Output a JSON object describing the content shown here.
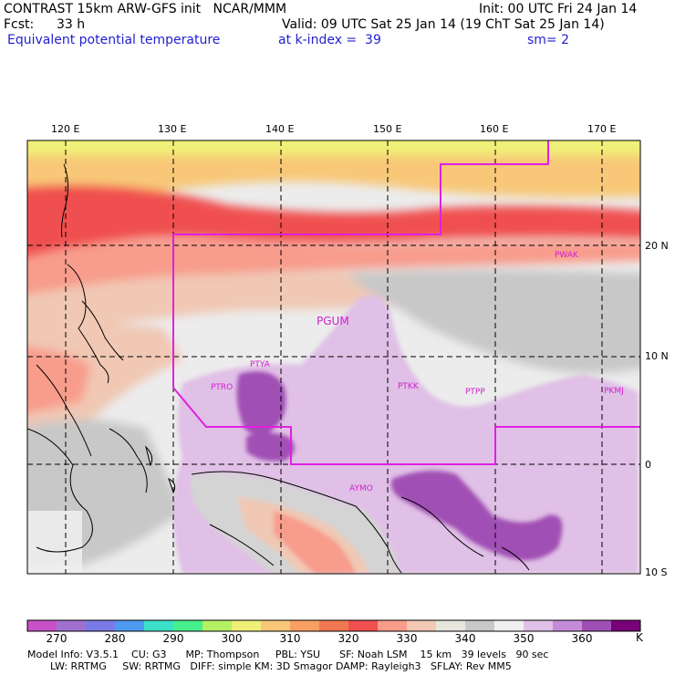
{
  "header": {
    "title": "CONTRAST 15km ARW-GFS init   NCAR/MMM",
    "init": "Init: 00 UTC Fri 24 Jan 14",
    "fcst_label": "Fcst:",
    "fcst_value": "33 h",
    "valid": "Valid: 09 UTC Sat 25 Jan 14 (19 ChT Sat 25 Jan 14)",
    "field": "Equivalent potential temperature",
    "level": "at k-index =  39",
    "smooth": "sm= 2"
  },
  "map": {
    "lon_labels": [
      "120 E",
      "130 E",
      "140 E",
      "150 E",
      "160 E",
      "170 E"
    ],
    "lat_labels": [
      "20 N",
      "10 N",
      "0",
      "10 S"
    ],
    "stations": [
      "PGUM",
      "PTYA",
      "PTRO",
      "PTKK",
      "PTPP",
      "PKMJ",
      "PWAK",
      "AYMO"
    ]
  },
  "colorbar": {
    "unit": "K",
    "labels": [
      "270",
      "280",
      "290",
      "300",
      "310",
      "320",
      "330",
      "340",
      "350",
      "360"
    ],
    "colors": [
      "#c850c8",
      "#a070d0",
      "#7a7ae6",
      "#4e9af0",
      "#3ce0c8",
      "#46f08c",
      "#b4f064",
      "#f0f078",
      "#f8c878",
      "#f8a064",
      "#f07850",
      "#f05050",
      "#f89c8c",
      "#f0c8b4",
      "#e6e6dc",
      "#c8c8c8",
      "#f0f0f0",
      "#e0c0e6",
      "#c48cd8",
      "#a050b4",
      "#780078"
    ]
  },
  "model_info": {
    "line1": "Model Info: V3.5.1    CU: G3      MP: Thompson     PBL: YSU      SF: Noah LSM    15 km   39 levels   90 sec",
    "line2": "LW: RRTMG     SW: RRTMG   DIFF: simple KM: 3D Smagor DAMP: Rayleigh3   SFLAY: Rev MM5"
  }
}
